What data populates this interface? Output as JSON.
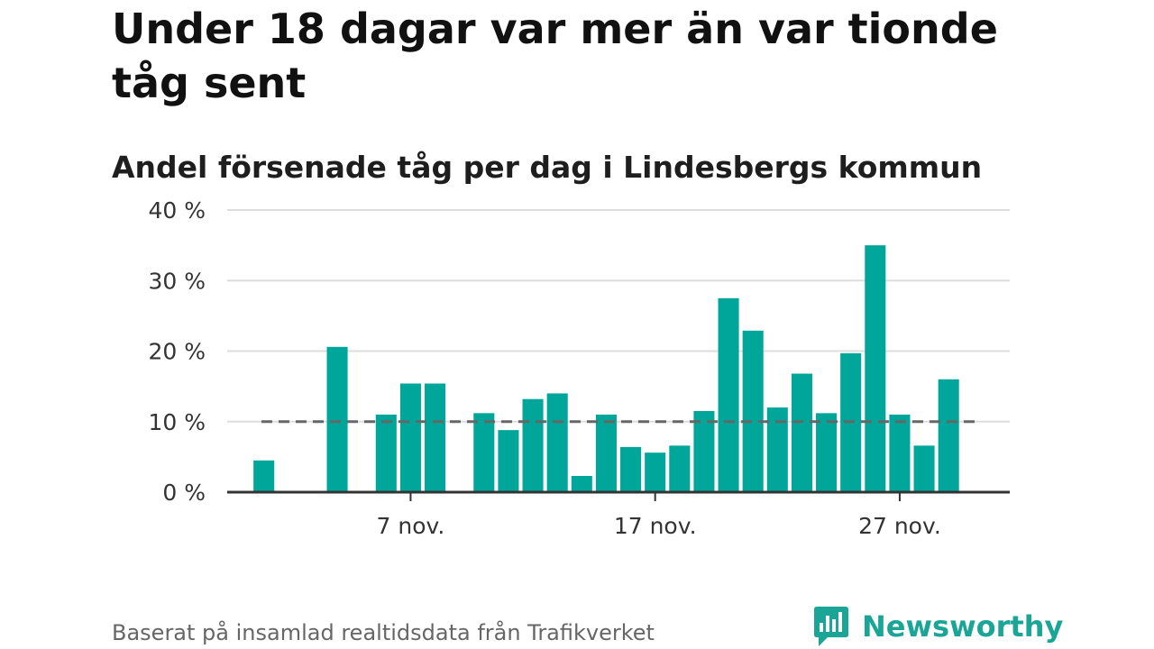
{
  "chart_data": {
    "type": "bar",
    "title": "Under 18 dagar var mer än var tionde tåg sent",
    "subtitle": "Andel försenade tåg per dag i Lindesbergs kommun",
    "x_tick_labels": [
      {
        "day": 7,
        "label": "7 nov."
      },
      {
        "day": 17,
        "label": "17 nov."
      },
      {
        "day": 27,
        "label": "27 nov."
      }
    ],
    "y_tick_labels": [
      {
        "value": 0,
        "label": "0 %"
      },
      {
        "value": 10,
        "label": "10 %"
      },
      {
        "value": 20,
        "label": "20 %"
      },
      {
        "value": 30,
        "label": "30 %"
      },
      {
        "value": 40,
        "label": "40 %"
      }
    ],
    "ylim": [
      0,
      40
    ],
    "xlim": [
      -0.5,
      31.5
    ],
    "days": [
      1,
      2,
      3,
      4,
      5,
      6,
      7,
      8,
      9,
      10,
      11,
      12,
      13,
      14,
      15,
      16,
      17,
      18,
      19,
      20,
      21,
      22,
      23,
      24,
      25,
      26,
      27,
      28,
      29,
      30
    ],
    "values": [
      4.5,
      null,
      null,
      20.6,
      null,
      11.0,
      15.4,
      15.4,
      null,
      11.2,
      8.8,
      13.2,
      14.0,
      2.3,
      11.0,
      6.4,
      5.6,
      6.6,
      11.5,
      27.5,
      22.9,
      12.0,
      16.8,
      11.2,
      19.7,
      35.0,
      11.0,
      6.6,
      16.0,
      null
    ],
    "reference_line": 10,
    "bar_color": "#00a699",
    "reference_color": "#666666",
    "grid": true,
    "legend": "none"
  },
  "footer": {
    "source": "Baserat på insamlad realtidsdata från Trafikverket",
    "brand": "Newsworthy",
    "brand_color": "#1aa597"
  }
}
